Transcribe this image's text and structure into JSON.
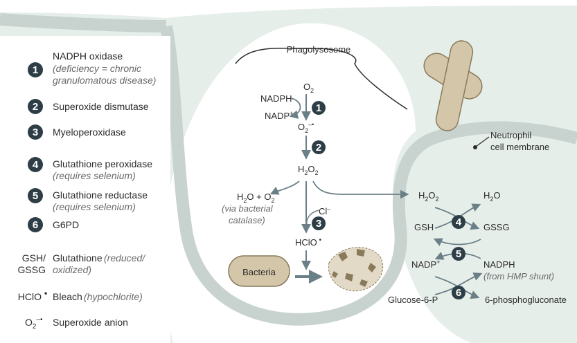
{
  "legend": {
    "items": [
      {
        "num": "1",
        "name": "NADPH oxidase",
        "note": "(deficiency = chronic",
        "note2": "granulomatous disease)"
      },
      {
        "num": "2",
        "name": "Superoxide dismutase"
      },
      {
        "num": "3",
        "name": "Myeloperoxidase"
      },
      {
        "num": "4",
        "name": "Glutathione peroxidase",
        "note": "(requires selenium)"
      },
      {
        "num": "5",
        "name": "Glutathione reductase",
        "note": "(requires selenium)"
      },
      {
        "num": "6",
        "name": "G6PD"
      }
    ],
    "abbrev": [
      {
        "abbr": "GSH/",
        "abbr2": "GSSG",
        "name": "Glutathione",
        "note": "(reduced/",
        "note2": "oxidized)"
      },
      {
        "abbr": "HClO",
        "name": "Bleach",
        "note": "(hypochlorite)"
      },
      {
        "abbr": "O",
        "name": "Superoxide anion"
      }
    ]
  },
  "labels": {
    "phagolysosome": "Phagolysosome",
    "neutrophil": "Neutrophil",
    "cell_membrane": "cell membrane",
    "bacteria": "Bacteria"
  },
  "pathway": {
    "o2": "O",
    "nadph": "NADPH",
    "nadp": "NADP",
    "superoxide": "O",
    "h2o2": "H",
    "h2o_o2": "H",
    "via_bacterial": "(via bacterial",
    "catalase": "catalase)",
    "cl": "Cl",
    "hclo": "HClO",
    "cycle_h2o2": "H",
    "cycle_h2o": "H",
    "gsh": "GSH",
    "gssg": "GSSG",
    "nadp_cycle": "NADP",
    "nadph_cycle": "NADPH",
    "hmp": "(from HMP shunt)",
    "glucose6p": "Glucose-6-P",
    "phosphogluconate": "6-phosphogluconate"
  },
  "steps": [
    "1",
    "2",
    "3",
    "4",
    "5",
    "6"
  ],
  "colors": {
    "membrane": "#c8d3cf",
    "cytoplasm": "#e6eeea",
    "circle": "#2e3e46",
    "arrow": "#6b7f87",
    "bacteria": "#d4c6a8",
    "bacteria_stroke": "#8a7a5c"
  }
}
